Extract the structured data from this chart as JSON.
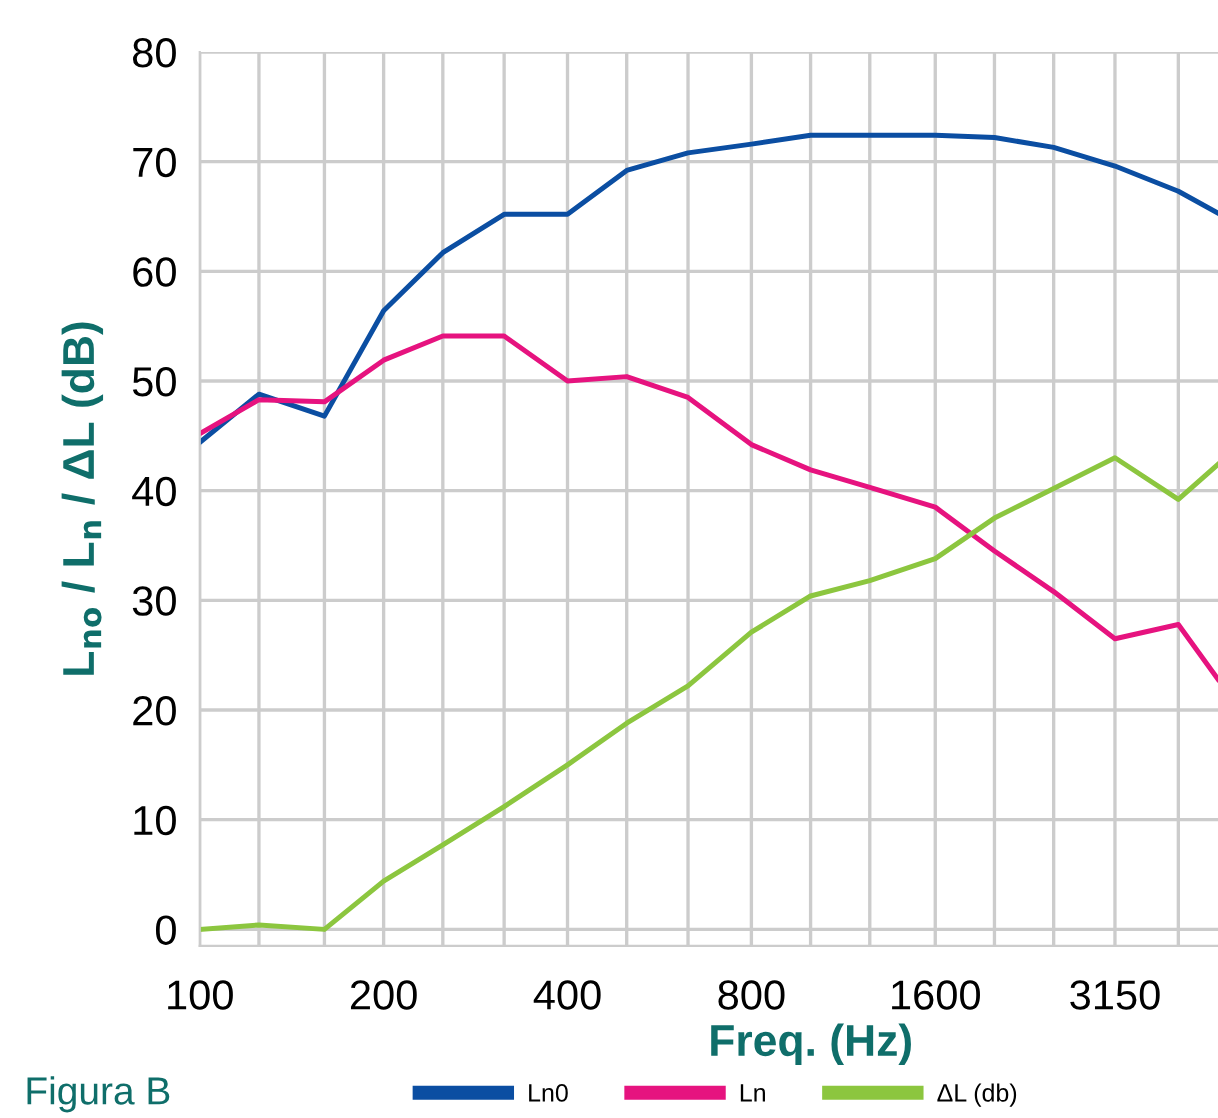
{
  "chart_data": {
    "type": "line",
    "x": [
      100,
      125,
      160,
      200,
      250,
      315,
      400,
      500,
      630,
      800,
      1000,
      1250,
      1600,
      2000,
      2500,
      3150,
      4000,
      4645
    ],
    "series": [
      {
        "name": "Ln0",
        "color": "#0b4ea2",
        "values": [
          44.4,
          48.8,
          46.8,
          56.4,
          61.7,
          65.2,
          65.2,
          69.2,
          70.8,
          71.6,
          72.4,
          72.4,
          72.4,
          72.2,
          71.3,
          69.6,
          67.3,
          65.3
        ]
      },
      {
        "name": "Ln",
        "color": "#e6137f",
        "values": [
          45.2,
          48.3,
          48.1,
          51.9,
          54.1,
          54.1,
          50.0,
          50.4,
          48.5,
          44.2,
          41.9,
          40.3,
          38.5,
          34.5,
          30.8,
          26.5,
          27.8,
          22.8
        ]
      },
      {
        "name": "ΔL (db)",
        "color": "#8cc63f",
        "values": [
          0,
          0.4,
          0,
          4.4,
          7.7,
          11.2,
          15.0,
          18.8,
          22.2,
          27.1,
          30.4,
          31.8,
          33.8,
          37.5,
          40.2,
          43.0,
          39.2,
          42.4
        ]
      }
    ],
    "xlabel": "Freq. (Hz)",
    "ylabel": "L$_{no}$ / L$_{n}$ / ΔL (dB)",
    "annotations": [
      "Figura B"
    ],
    "log": "x",
    "xlim": [
      100,
      4645
    ],
    "ylim": [
      -1.5,
      80
    ],
    "xticks": [
      100,
      {
        "value": 125,
        "label": null
      },
      {
        "value": 160,
        "label": null
      },
      200,
      {
        "value": 250,
        "label": null
      },
      {
        "value": 315,
        "label": null
      },
      400,
      {
        "value": 500,
        "label": null
      },
      {
        "value": 630,
        "label": null
      },
      800,
      {
        "value": 1000,
        "label": null
      },
      {
        "value": 1250,
        "label": null
      },
      1600,
      {
        "value": 2000,
        "label": null
      },
      {
        "value": 2500,
        "label": null
      },
      3150,
      {
        "value": 4000,
        "label": null
      }
    ],
    "yticks": [
      0,
      10,
      20,
      30,
      40,
      50,
      60,
      70,
      80
    ],
    "grid": true,
    "legend": "bottom",
    "marker": "none",
    "line_style": "solid"
  }
}
